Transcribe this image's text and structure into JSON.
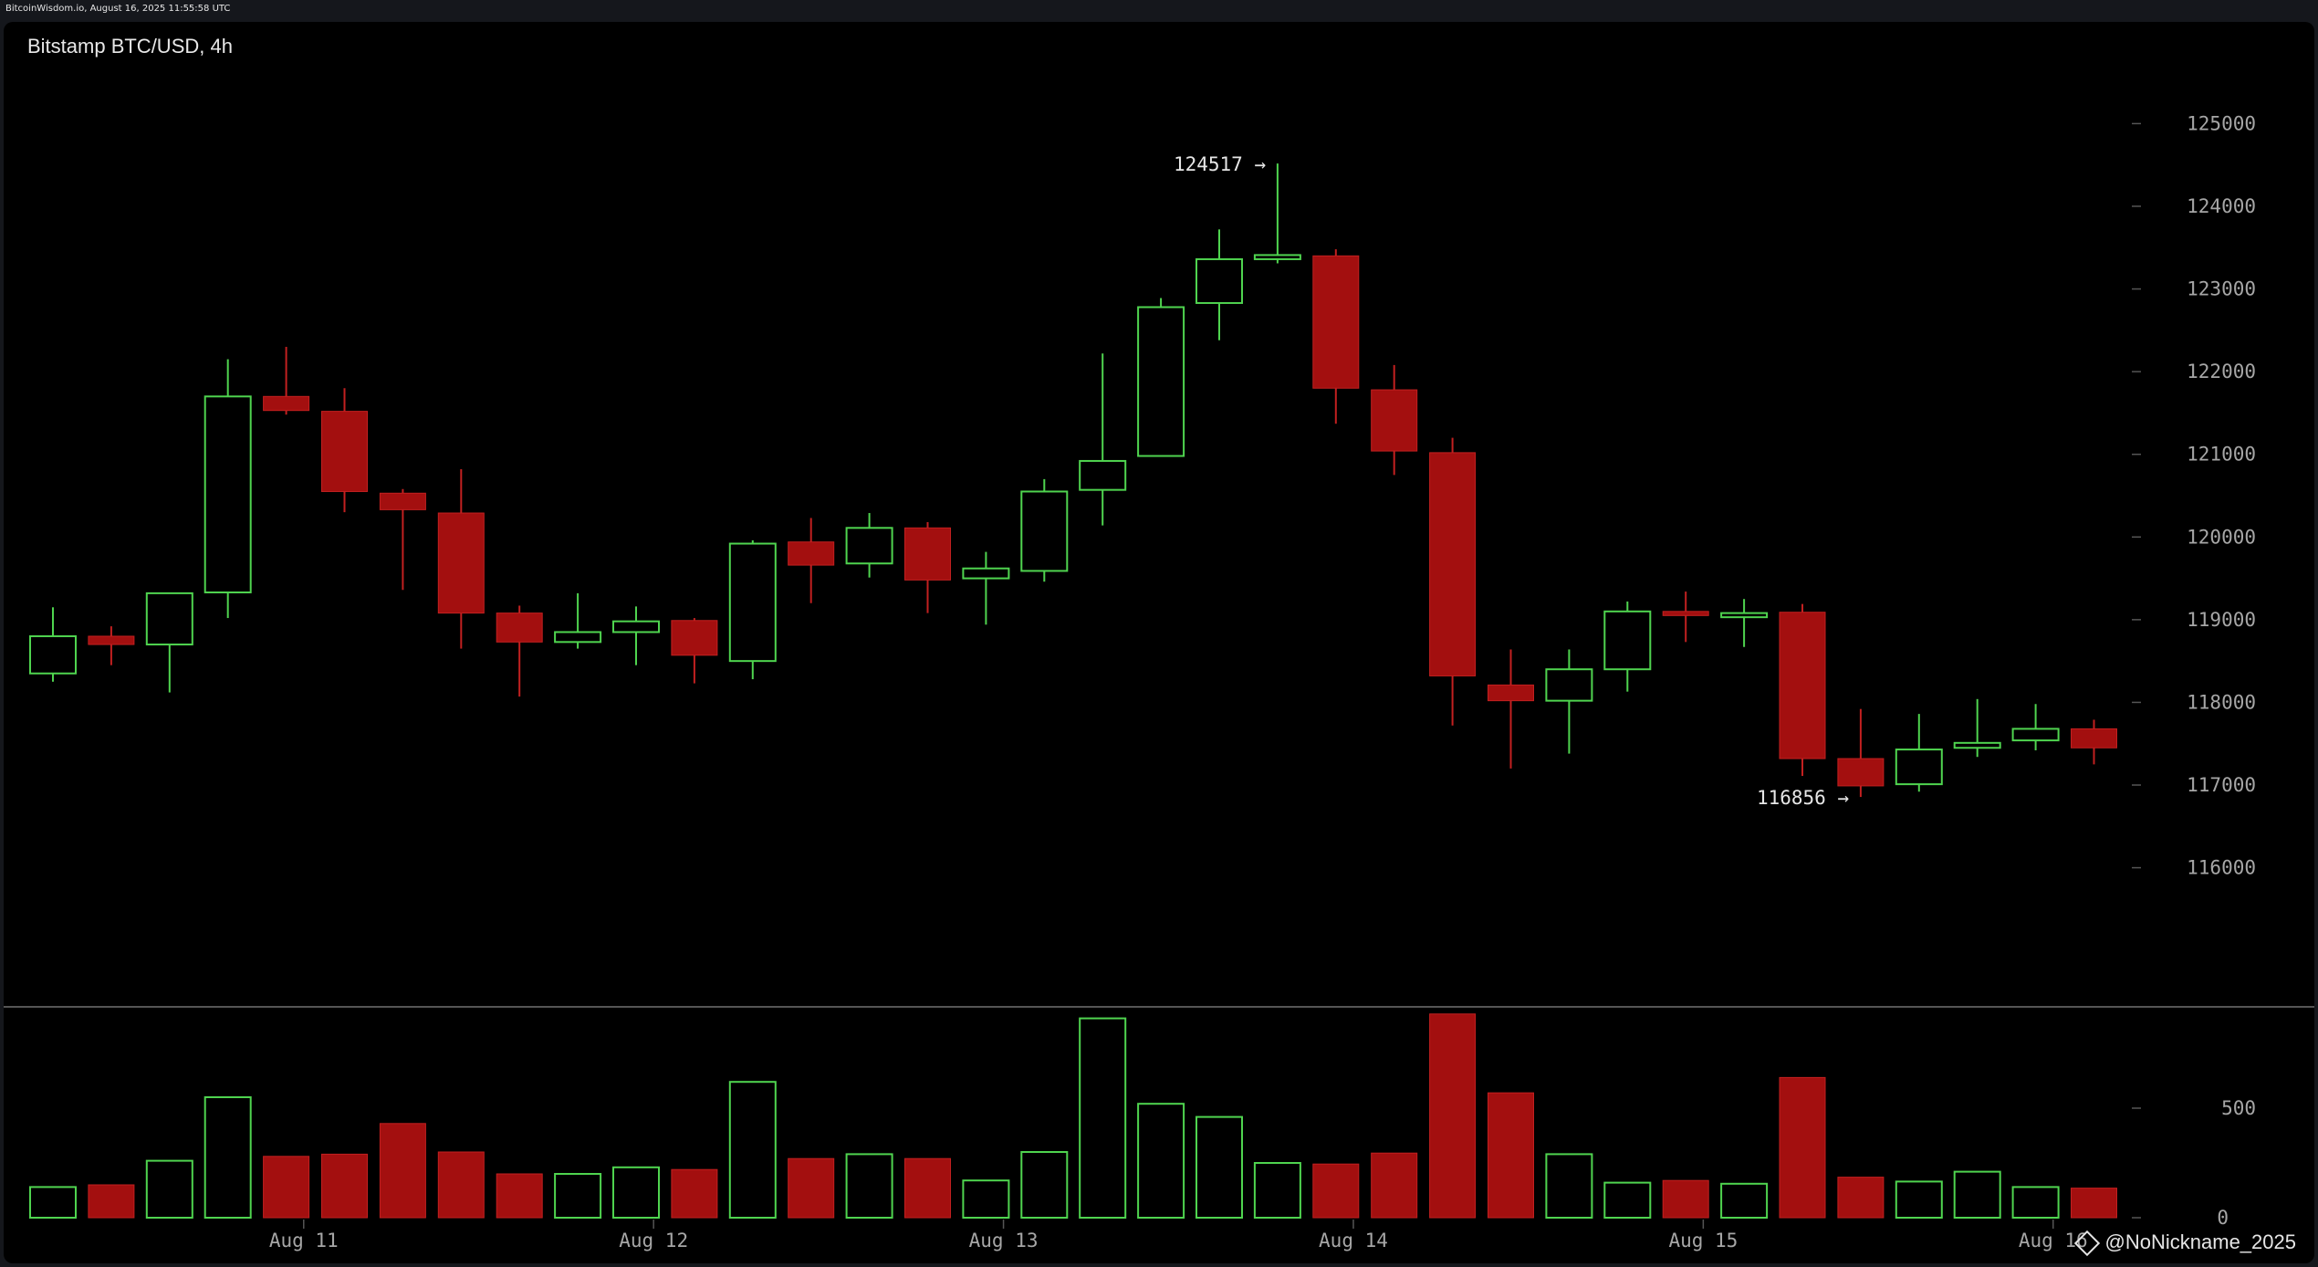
{
  "header": {
    "source_text": "BitcoinWisdom.io, August 16, 2025 11:55:58 UTC"
  },
  "chart_title": "Bitstamp BTC/USD, 4h",
  "watermark": "@NoNickname_2025",
  "colors": {
    "up": "#4fd44f",
    "down": "#a30f0f",
    "down_stroke": "#c22020",
    "text": "#e6e6e6",
    "axis": "#a6a6a6",
    "divider": "#555555"
  },
  "chart_data": [
    {
      "type": "candlestick",
      "title": "Bitstamp BTC/USD, 4h",
      "ylim": [
        115300,
        125700
      ],
      "y_ticks": [
        125000,
        124000,
        123000,
        122000,
        121000,
        120000,
        119000,
        118000,
        117000,
        116000
      ],
      "x_ticks": [
        {
          "label": "Aug 11",
          "index": 4.3
        },
        {
          "label": "Aug 12",
          "index": 10.3
        },
        {
          "label": "Aug 13",
          "index": 16.3
        },
        {
          "label": "Aug 14",
          "index": 22.3
        },
        {
          "label": "Aug 15",
          "index": 28.3
        },
        {
          "label": "Aug 16",
          "index": 34.3
        }
      ],
      "annotations": [
        {
          "text": "124517 →",
          "index": 20.8,
          "value": 124517
        },
        {
          "text": "116856 →",
          "index": 30.8,
          "value": 116856
        }
      ],
      "candles": [
        {
          "o": 118350,
          "h": 119150,
          "l": 118250,
          "c": 118800
        },
        {
          "o": 118800,
          "h": 118920,
          "l": 118450,
          "c": 118700
        },
        {
          "o": 118700,
          "h": 119320,
          "l": 118120,
          "c": 119320
        },
        {
          "o": 119330,
          "h": 122150,
          "l": 119020,
          "c": 121700
        },
        {
          "o": 121700,
          "h": 122300,
          "l": 121480,
          "c": 121530
        },
        {
          "o": 121520,
          "h": 121800,
          "l": 120300,
          "c": 120550
        },
        {
          "o": 120530,
          "h": 120580,
          "l": 119360,
          "c": 120330
        },
        {
          "o": 120290,
          "h": 120820,
          "l": 118650,
          "c": 119080
        },
        {
          "o": 119080,
          "h": 119170,
          "l": 118070,
          "c": 118730
        },
        {
          "o": 118730,
          "h": 119320,
          "l": 118650,
          "c": 118850
        },
        {
          "o": 118850,
          "h": 119160,
          "l": 118450,
          "c": 118980
        },
        {
          "o": 118990,
          "h": 119020,
          "l": 118230,
          "c": 118570
        },
        {
          "o": 118500,
          "h": 119960,
          "l": 118280,
          "c": 119920
        },
        {
          "o": 119940,
          "h": 120230,
          "l": 119200,
          "c": 119660
        },
        {
          "o": 119680,
          "h": 120290,
          "l": 119510,
          "c": 120110
        },
        {
          "o": 120110,
          "h": 120180,
          "l": 119080,
          "c": 119480
        },
        {
          "o": 119500,
          "h": 119820,
          "l": 118940,
          "c": 119620
        },
        {
          "o": 119590,
          "h": 120700,
          "l": 119460,
          "c": 120550
        },
        {
          "o": 120570,
          "h": 122220,
          "l": 120140,
          "c": 120920
        },
        {
          "o": 120980,
          "h": 122890,
          "l": 120980,
          "c": 122780
        },
        {
          "o": 122830,
          "h": 123720,
          "l": 122380,
          "c": 123360
        },
        {
          "o": 123360,
          "h": 124517,
          "l": 123310,
          "c": 123410
        },
        {
          "o": 123400,
          "h": 123480,
          "l": 121370,
          "c": 121800
        },
        {
          "o": 121780,
          "h": 122080,
          "l": 120750,
          "c": 121040
        },
        {
          "o": 121020,
          "h": 121200,
          "l": 117720,
          "c": 118320
        },
        {
          "o": 118210,
          "h": 118640,
          "l": 117200,
          "c": 118020
        },
        {
          "o": 118020,
          "h": 118640,
          "l": 117380,
          "c": 118400
        },
        {
          "o": 118400,
          "h": 119220,
          "l": 118130,
          "c": 119100
        },
        {
          "o": 119100,
          "h": 119340,
          "l": 118730,
          "c": 119050
        },
        {
          "o": 119030,
          "h": 119250,
          "l": 118670,
          "c": 119080
        },
        {
          "o": 119090,
          "h": 119190,
          "l": 117110,
          "c": 117320
        },
        {
          "o": 117320,
          "h": 117920,
          "l": 116856,
          "c": 116990
        },
        {
          "o": 117010,
          "h": 117860,
          "l": 116920,
          "c": 117430
        },
        {
          "o": 117450,
          "h": 118040,
          "l": 117340,
          "c": 117510
        },
        {
          "o": 117540,
          "h": 117980,
          "l": 117420,
          "c": 117680
        },
        {
          "o": 117680,
          "h": 117790,
          "l": 117250,
          "c": 117450
        }
      ]
    },
    {
      "type": "bar",
      "title": "Volume",
      "ylim": [
        0,
        950
      ],
      "y_ticks": [
        500,
        0
      ],
      "values": [
        140,
        150,
        260,
        550,
        280,
        290,
        430,
        300,
        200,
        200,
        230,
        220,
        620,
        270,
        290,
        270,
        170,
        300,
        910,
        520,
        460,
        250,
        245,
        295,
        930,
        570,
        290,
        160,
        170,
        155,
        640,
        185,
        165,
        210,
        140,
        135
      ],
      "directions": [
        "up",
        "down",
        "up",
        "up",
        "down",
        "down",
        "down",
        "down",
        "down",
        "up",
        "up",
        "down",
        "up",
        "down",
        "up",
        "down",
        "up",
        "up",
        "up",
        "up",
        "up",
        "up",
        "down",
        "down",
        "down",
        "down",
        "up",
        "up",
        "down",
        "up",
        "down",
        "down",
        "up",
        "up",
        "up",
        "down"
      ]
    }
  ]
}
